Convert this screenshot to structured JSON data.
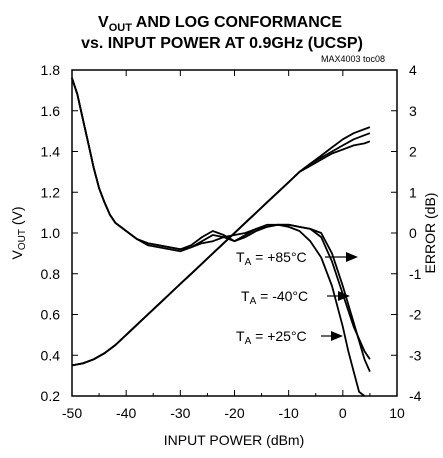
{
  "chart_data": {
    "type": "line",
    "title_prefix": "V",
    "title_sub": "OUT",
    "title_line1_rest": " AND LOG CONFORMANCE",
    "title_line2": "vs. INPUT POWER AT 0.9GHz (UCSP)",
    "tag": "MAX4003 toc08",
    "xlabel": "INPUT POWER (dBm)",
    "ylabel_left_main": "V",
    "ylabel_left_sub": "OUT",
    "ylabel_left_rest": " (V)",
    "ylabel_right": "ERROR (dB)",
    "xlim": [
      -50,
      10
    ],
    "ylim_left": [
      0.2,
      1.8
    ],
    "ylim_right": [
      -4,
      4
    ],
    "x_ticks": [
      "-50",
      "-40",
      "-30",
      "-20",
      "-10",
      "0",
      "10"
    ],
    "y_left_ticks": [
      "0.2",
      "0.4",
      "0.6",
      "0.8",
      "1.0",
      "1.2",
      "1.4",
      "1.6",
      "1.8"
    ],
    "y_right_ticks": [
      "-4",
      "-3",
      "-2",
      "-1",
      "0",
      "1",
      "2",
      "3",
      "4"
    ],
    "annotations": [
      {
        "sym": "T",
        "sub": "A",
        "text": " = +85°C"
      },
      {
        "sym": "T",
        "sub": "A",
        "text": " = -40°C"
      },
      {
        "sym": "T",
        "sub": "A",
        "text": " = +25°C"
      }
    ],
    "series_vout": [
      {
        "x": [
          -50,
          -48,
          -46,
          -44,
          -42,
          -40,
          -38,
          -36,
          -34,
          -32,
          -30,
          -28,
          -26,
          -24,
          -22,
          -20,
          -18,
          -16,
          -14,
          -12,
          -10,
          -8,
          -6,
          -4,
          -2,
          0,
          2,
          4,
          5
        ],
        "y": [
          0.35,
          0.36,
          0.38,
          0.41,
          0.45,
          0.5,
          0.55,
          0.6,
          0.65,
          0.7,
          0.75,
          0.8,
          0.85,
          0.9,
          0.95,
          1.0,
          1.05,
          1.1,
          1.15,
          1.2,
          1.25,
          1.3,
          1.34,
          1.38,
          1.42,
          1.46,
          1.49,
          1.51,
          1.52
        ]
      },
      {
        "x": [
          -50,
          -48,
          -46,
          -44,
          -42,
          -40,
          -38,
          -36,
          -34,
          -32,
          -30,
          -28,
          -26,
          -24,
          -22,
          -20,
          -18,
          -16,
          -14,
          -12,
          -10,
          -8,
          -6,
          -4,
          -2,
          0,
          2,
          4,
          5
        ],
        "y": [
          0.35,
          0.36,
          0.38,
          0.41,
          0.45,
          0.5,
          0.55,
          0.6,
          0.65,
          0.7,
          0.75,
          0.8,
          0.85,
          0.9,
          0.95,
          1.0,
          1.05,
          1.1,
          1.15,
          1.2,
          1.25,
          1.3,
          1.34,
          1.37,
          1.4,
          1.43,
          1.46,
          1.48,
          1.49
        ]
      },
      {
        "x": [
          -50,
          -48,
          -46,
          -44,
          -42,
          -40,
          -38,
          -36,
          -34,
          -32,
          -30,
          -28,
          -26,
          -24,
          -22,
          -20,
          -18,
          -16,
          -14,
          -12,
          -10,
          -8,
          -6,
          -4,
          -2,
          0,
          2,
          4,
          5
        ],
        "y": [
          0.35,
          0.36,
          0.38,
          0.41,
          0.45,
          0.5,
          0.55,
          0.6,
          0.65,
          0.7,
          0.75,
          0.8,
          0.85,
          0.9,
          0.95,
          1.0,
          1.05,
          1.1,
          1.15,
          1.2,
          1.25,
          1.3,
          1.33,
          1.36,
          1.39,
          1.41,
          1.43,
          1.44,
          1.45
        ]
      }
    ],
    "series_error": [
      {
        "x": [
          -50,
          -49,
          -48,
          -47,
          -46,
          -45,
          -44,
          -43,
          -42,
          -40,
          -38,
          -36,
          -34,
          -32,
          -30,
          -28,
          -26,
          -24,
          -22,
          -20,
          -18,
          -16,
          -14,
          -12,
          -10,
          -8,
          -6,
          -4,
          -2,
          0,
          2,
          4,
          5
        ],
        "y": [
          3.8,
          3.4,
          2.8,
          2.2,
          1.6,
          1.1,
          0.75,
          0.45,
          0.25,
          0.05,
          -0.15,
          -0.25,
          -0.3,
          -0.35,
          -0.4,
          -0.35,
          -0.2,
          -0.05,
          -0.1,
          -0.2,
          -0.1,
          0.05,
          0.15,
          0.2,
          0.2,
          0.15,
          0.1,
          0.0,
          -0.5,
          -1.3,
          -2.2,
          -3.1,
          -3.4
        ]
      },
      {
        "x": [
          -50,
          -49,
          -48,
          -47,
          -46,
          -45,
          -44,
          -43,
          -42,
          -40,
          -38,
          -36,
          -34,
          -32,
          -30,
          -28,
          -26,
          -24,
          -22,
          -20,
          -18,
          -16,
          -14,
          -12,
          -10,
          -8,
          -6,
          -4,
          -2,
          0,
          1,
          2,
          3,
          4
        ],
        "y": [
          3.8,
          3.4,
          2.8,
          2.2,
          1.6,
          1.1,
          0.75,
          0.45,
          0.25,
          0.05,
          -0.15,
          -0.3,
          -0.35,
          -0.4,
          -0.45,
          -0.35,
          -0.25,
          -0.2,
          -0.1,
          -0.05,
          0.0,
          0.1,
          0.15,
          0.2,
          0.15,
          0.05,
          -0.2,
          -0.6,
          -1.3,
          -2.3,
          -2.9,
          -3.4,
          -3.9,
          -4.0
        ]
      },
      {
        "x": [
          -50,
          -49,
          -48,
          -47,
          -46,
          -45,
          -44,
          -43,
          -42,
          -40,
          -38,
          -36,
          -34,
          -32,
          -30,
          -28,
          -26,
          -24,
          -22,
          -20,
          -18,
          -16,
          -14,
          -12,
          -10,
          -8,
          -6,
          -4,
          -2,
          0,
          2,
          4,
          5
        ],
        "y": [
          3.8,
          3.4,
          2.8,
          2.2,
          1.6,
          1.1,
          0.75,
          0.45,
          0.25,
          0.05,
          -0.15,
          -0.25,
          -0.3,
          -0.35,
          -0.4,
          -0.3,
          -0.1,
          0.05,
          -0.05,
          -0.2,
          -0.05,
          0.1,
          0.2,
          0.2,
          0.2,
          0.15,
          0.1,
          -0.1,
          -0.7,
          -1.5,
          -2.3,
          -2.9,
          -3.1
        ]
      }
    ]
  }
}
